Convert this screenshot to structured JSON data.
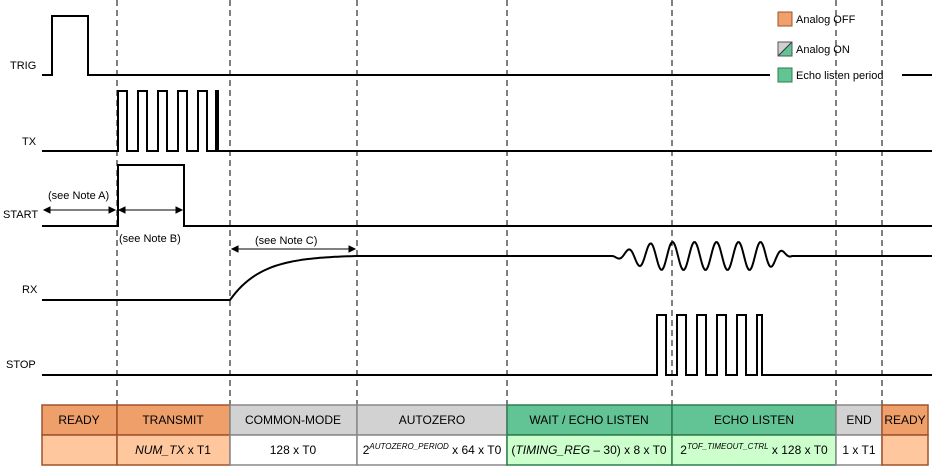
{
  "signals": {
    "trig": "TRIG",
    "tx": "TX",
    "start": "START",
    "rx": "RX",
    "stop": "STOP"
  },
  "notes": {
    "a": "(see Note A)",
    "b": "(see Note B)",
    "c": "(see Note C)"
  },
  "legend": [
    {
      "label": "Analog OFF",
      "color": "#f0a06a"
    },
    {
      "label": "Analog ON",
      "color": "#d0d0d0/#62c394"
    },
    {
      "label": "Echo listen period",
      "color": "#62c394"
    }
  ],
  "colors": {
    "analog_off_header": "#ee9f6a",
    "analog_off_cell": "#ffc79d",
    "analog_on_header": "#d2d2d2",
    "echo_header": "#62c394",
    "echo_cell": "#ccffcc"
  },
  "table": {
    "headers": [
      "READY",
      "TRANSMIT",
      "COMMON-MODE",
      "AUTOZERO",
      "WAIT / ECHO LISTEN",
      "ECHO LISTEN",
      "END",
      "READY"
    ],
    "row": {
      "transmit_var": "NUM_TX",
      "transmit_rest": " x T1",
      "common_mode": "128 x T0",
      "autozero_base": "2",
      "autozero_sup": "AUTOZERO_PERIOD",
      "autozero_rest": " x 64 x T0",
      "wait_open": "(",
      "wait_var": "TIMING_REG",
      "wait_rest": " – 30) x 8 x T0",
      "echo_base": "2",
      "echo_sup": "TOF_TIMEOUT_CTRL",
      "echo_rest": " x 128 x T0",
      "end": "1 x T1"
    }
  }
}
